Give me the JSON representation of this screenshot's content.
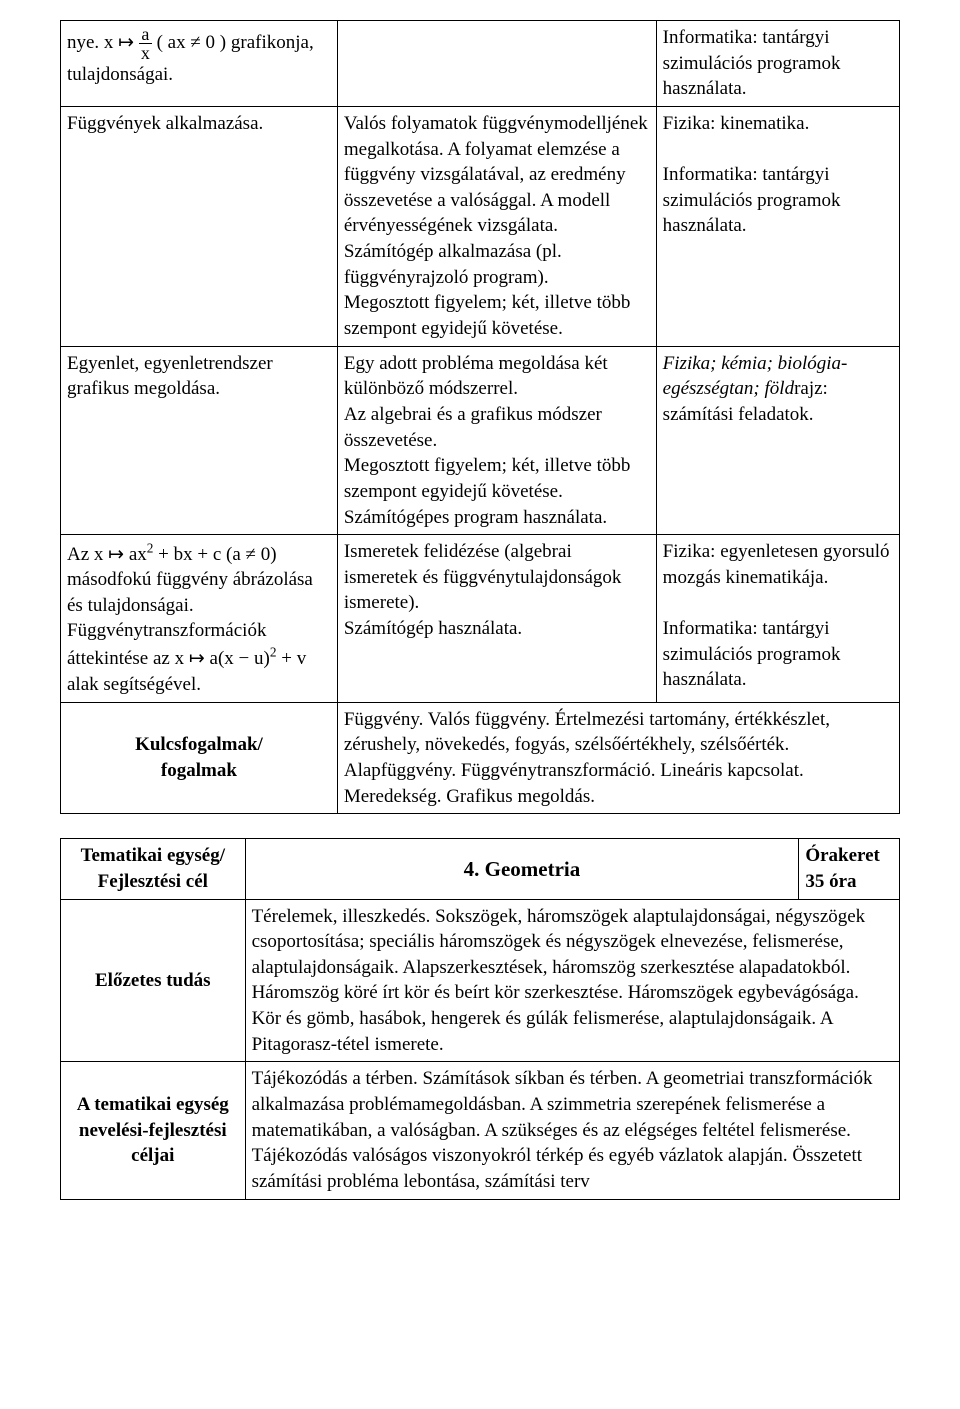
{
  "table1": {
    "rows": [
      {
        "c1_html": "nye. x ↦ <span class='frac'><span class='num'>a</span><span class='den'>x</span></span> ( ax ≠ 0 ) grafikonja, tulajdonságai.",
        "c2": "",
        "c3": "Informatika: tantárgyi szimulációs programok használata."
      },
      {
        "c1": "Függvények alkalmazása.",
        "c2": "Valós folyamatok függvénymodelljének megalkotása. A folyamat elemzése a függvény vizsgálatával, az eredmény összevetése a valósággal. A modell érvényességének vizsgálata.\nSzámítógép alkalmazása (pl. függvényrajzoló program).\nMegosztott figyelem; két, illetve több szempont egyidejű követése.",
        "c3": "Fizika: kinematika.\n\nInformatika: tantárgyi szimulációs programok használata."
      },
      {
        "c1": "Egyenlet, egyenletrendszer grafikus megoldása.",
        "c2": "Egy adott probléma megoldása két különböző módszerrel.\nAz algebrai és a grafikus módszer összevetése.\nMegosztott figyelem; két, illetve több szempont egyidejű követése.\nSzámítógépes program használata.",
        "c3_html": "<span class='italic'>Fizika; kémia; biológia-egészségtan; föld</span>rajz: számítási feladatok."
      },
      {
        "c1_html": "Az x ↦ ax<sup>2</sup> + bx + c (a ≠ 0) másodfokú függvény ábrázolása és tulajdonságai.<br>Függvénytranszformációk áttekintése az x ↦ a(x − u)<sup>2</sup> + v alak segítségével.",
        "c2": "Ismeretek felidézése (algebrai ismeretek és függvénytulajdonságok ismerete).\nSzámítógép használata.",
        "c3": "Fizika: egyenletesen gyorsuló mozgás kinematikája.\n\nInformatika: tantárgyi szimulációs programok használata."
      }
    ],
    "keyrow": {
      "label": "Kulcsfogalmak/\nfogalmak",
      "text": "Függvény. Valós függvény. Értelmezési tartomány, értékkészlet, zérushely, növekedés, fogyás, szélsőértékhely, szélsőérték. Alapfüggvény. Függvénytranszformáció. Lineáris kapcsolat. Meredekség. Grafikus megoldás."
    }
  },
  "table2": {
    "header": {
      "left": "Tematikai egység/\nFejlesztési cél",
      "center": "4. Geometria",
      "right": "Órakeret\n35 óra"
    },
    "rows": [
      {
        "label": "Előzetes tudás",
        "text": "Térelemek, illeszkedés. Sokszögek, háromszögek alaptulajdonságai, négyszögek csoportosítása; speciális háromszögek és négyszögek elnevezése, felismerése, alaptulajdonságaik. Alapszerkesztések, háromszög szerkesztése alapadatokból. Háromszög köré írt kör és beírt kör szerkesztése. Háromszögek egybevágósága. Kör és gömb, hasábok, hengerek és gúlák felismerése, alaptulajdonságaik. A Pitagorasz-tétel ismerete."
      },
      {
        "label": "A tematikai egység nevelési-fejlesztési céljai",
        "text": "Tájékozódás a térben. Számítások síkban és térben. A geometriai transzformációk alkalmazása problémamegoldásban. A szimmetria szerepének felismerése a matematikában, a valóságban. A szükséges és az elégséges feltétel felismerése. Tájékozódás valóságos viszonyokról térkép és egyéb vázlatok alapján. Összetett számítási probléma lebontása, számítási terv"
      }
    ]
  }
}
